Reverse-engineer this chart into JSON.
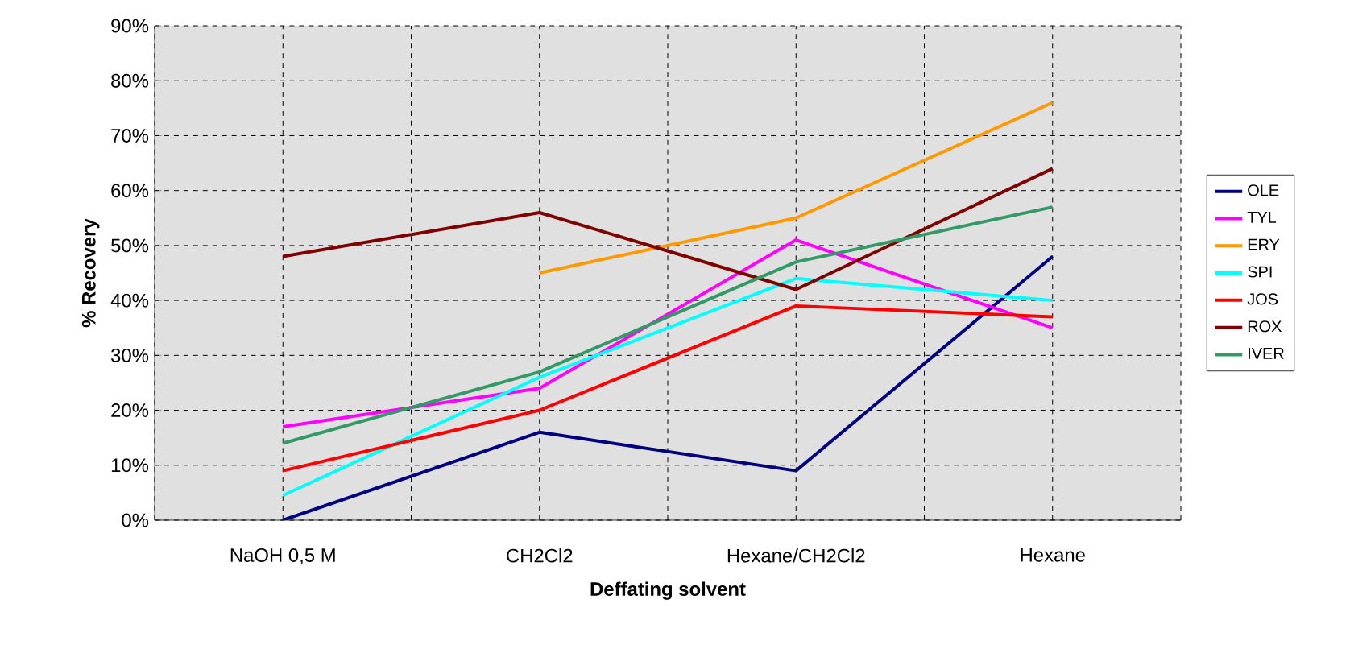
{
  "chart_data": {
    "type": "line",
    "xlabel": "Deffating solvent",
    "ylabel": "% Recovery",
    "categories": [
      "NaOH 0,5 M",
      "CH2Cl2",
      "Hexane/CH2Cl2",
      "Hexane"
    ],
    "series": [
      {
        "name": "OLE",
        "color": "#000080",
        "values": [
          0,
          16,
          9,
          48
        ]
      },
      {
        "name": "TYL",
        "color": "#ff00ff",
        "values": [
          17,
          24,
          51,
          35
        ]
      },
      {
        "name": "ERY",
        "color": "#ff9900",
        "values": [
          null,
          45,
          55,
          76
        ]
      },
      {
        "name": "SPI",
        "color": "#00ffff",
        "values": [
          4.5,
          26,
          44,
          40
        ]
      },
      {
        "name": "JOS",
        "color": "#ff0000",
        "values": [
          9,
          20,
          39,
          37
        ]
      },
      {
        "name": "ROX",
        "color": "#800000",
        "values": [
          48,
          56,
          42,
          64
        ]
      },
      {
        "name": "IVER",
        "color": "#339966",
        "values": [
          14,
          27,
          47,
          57
        ]
      }
    ],
    "ylim": [
      0,
      90
    ],
    "yticks": [
      {
        "value": 0,
        "label": "0%"
      },
      {
        "value": 10,
        "label": "10%"
      },
      {
        "value": 20,
        "label": "20%"
      },
      {
        "value": 30,
        "label": "30%"
      },
      {
        "value": 40,
        "label": "40%"
      },
      {
        "value": 50,
        "label": "50%"
      },
      {
        "value": 60,
        "label": "60%"
      },
      {
        "value": 70,
        "label": "70%"
      },
      {
        "value": 80,
        "label": "80%"
      },
      {
        "value": 90,
        "label": "90%"
      }
    ],
    "grid": true,
    "legend": "right",
    "marker": "none",
    "line_style": "solid"
  }
}
